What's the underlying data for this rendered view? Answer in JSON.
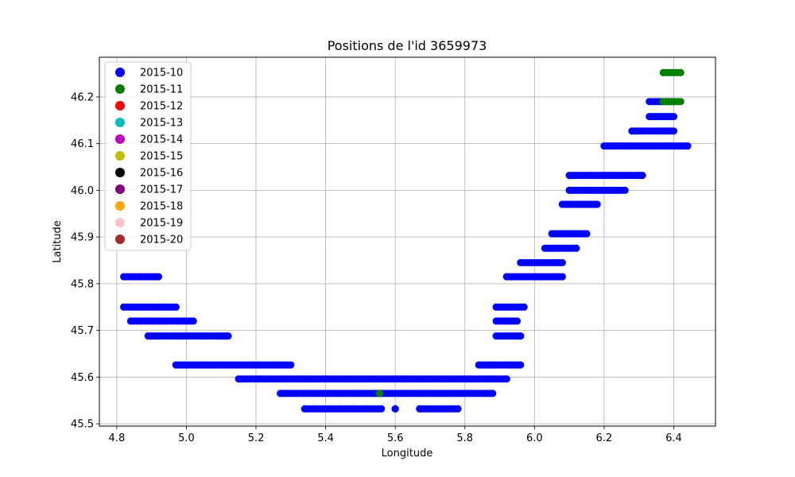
{
  "chart_data": {
    "type": "scatter",
    "title": "Positions de l'id 3659973",
    "xlabel": "Longitude",
    "ylabel": "Latitude",
    "xlim": [
      4.75,
      6.52
    ],
    "ylim": [
      45.495,
      46.285
    ],
    "xticks": [
      4.8,
      5.0,
      5.2,
      5.4,
      5.6,
      5.8,
      6.0,
      6.2,
      6.4
    ],
    "xtick_labels": [
      "4.8",
      "5.0",
      "5.2",
      "5.4",
      "5.6",
      "5.8",
      "6.0",
      "6.2",
      "6.4"
    ],
    "yticks": [
      45.5,
      45.6,
      45.7,
      45.8,
      45.9,
      46.0,
      46.1,
      46.2
    ],
    "ytick_labels": [
      "45.5",
      "45.6",
      "45.7",
      "45.8",
      "45.9",
      "46.0",
      "46.1",
      "46.2"
    ],
    "grid": true,
    "legend_position": "top-left",
    "legend": [
      {
        "label": "2015-10",
        "color": "#0000ff"
      },
      {
        "label": "2015-11",
        "color": "#008000"
      },
      {
        "label": "2015-12",
        "color": "#ff0000"
      },
      {
        "label": "2015-13",
        "color": "#00bfbf"
      },
      {
        "label": "2015-14",
        "color": "#bf00bf"
      },
      {
        "label": "2015-15",
        "color": "#bfbf00"
      },
      {
        "label": "2015-16",
        "color": "#000000"
      },
      {
        "label": "2015-17",
        "color": "#800080"
      },
      {
        "label": "2015-18",
        "color": "#ffa500"
      },
      {
        "label": "2015-19",
        "color": "#ffc0cb"
      },
      {
        "label": "2015-20",
        "color": "#a52a2a"
      }
    ],
    "series": [
      {
        "name": "2015-10",
        "color": "#0000ff",
        "runs": [
          {
            "y": 45.815,
            "x_from": 4.82,
            "x_to": 4.92
          },
          {
            "y": 45.75,
            "x_from": 4.82,
            "x_to": 4.97
          },
          {
            "y": 45.72,
            "x_from": 4.84,
            "x_to": 5.02
          },
          {
            "y": 45.688,
            "x_from": 4.89,
            "x_to": 5.12
          },
          {
            "y": 45.626,
            "x_from": 4.97,
            "x_to": 5.3
          },
          {
            "y": 45.596,
            "x_from": 5.15,
            "x_to": 5.92
          },
          {
            "y": 45.565,
            "x_from": 5.27,
            "x_to": 5.88
          },
          {
            "y": 45.532,
            "x_from": 5.34,
            "x_to": 5.56
          },
          {
            "y": 45.532,
            "x_from": 5.6,
            "x_to": 5.6
          },
          {
            "y": 45.532,
            "x_from": 5.67,
            "x_to": 5.78
          },
          {
            "y": 45.626,
            "x_from": 5.84,
            "x_to": 5.96
          },
          {
            "y": 45.688,
            "x_from": 5.89,
            "x_to": 5.96
          },
          {
            "y": 45.72,
            "x_from": 5.89,
            "x_to": 5.95
          },
          {
            "y": 45.75,
            "x_from": 5.89,
            "x_to": 5.97
          },
          {
            "y": 45.815,
            "x_from": 5.92,
            "x_to": 6.08
          },
          {
            "y": 45.845,
            "x_from": 5.96,
            "x_to": 6.08
          },
          {
            "y": 45.876,
            "x_from": 6.03,
            "x_to": 6.12
          },
          {
            "y": 45.907,
            "x_from": 6.05,
            "x_to": 6.15
          },
          {
            "y": 45.97,
            "x_from": 6.08,
            "x_to": 6.18
          },
          {
            "y": 46.0,
            "x_from": 6.1,
            "x_to": 6.26
          },
          {
            "y": 46.032,
            "x_from": 6.1,
            "x_to": 6.31
          },
          {
            "y": 46.095,
            "x_from": 6.2,
            "x_to": 6.44
          },
          {
            "y": 46.127,
            "x_from": 6.28,
            "x_to": 6.4
          },
          {
            "y": 46.158,
            "x_from": 6.33,
            "x_to": 6.4
          },
          {
            "y": 46.19,
            "x_from": 6.33,
            "x_to": 6.4
          }
        ]
      },
      {
        "name": "2015-11",
        "color": "#008000",
        "runs": [
          {
            "y": 46.252,
            "x_from": 6.37,
            "x_to": 6.42
          },
          {
            "y": 46.19,
            "x_from": 6.37,
            "x_to": 6.42
          },
          {
            "y": 45.565,
            "x_from": 5.555,
            "x_to": 5.555
          }
        ]
      }
    ]
  }
}
